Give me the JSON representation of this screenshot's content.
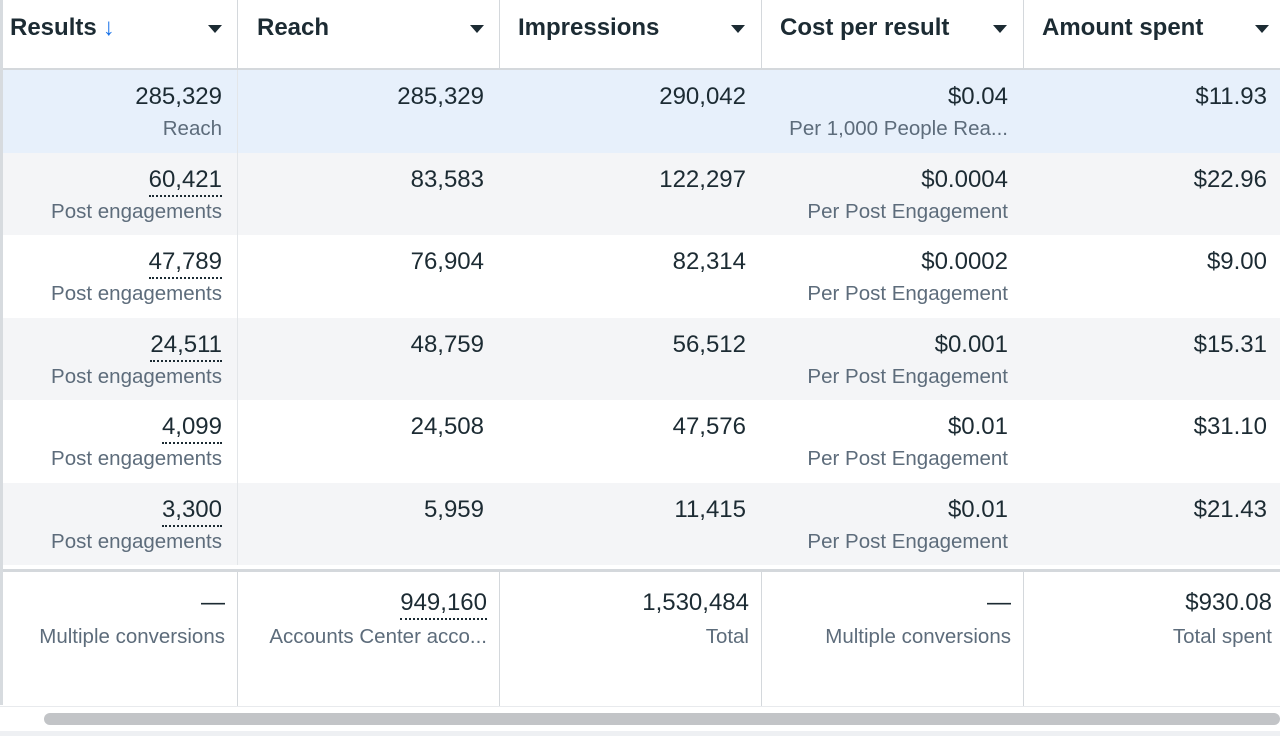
{
  "columns": [
    {
      "label": "Results",
      "sorted_desc": true
    },
    {
      "label": "Reach"
    },
    {
      "label": "Impressions"
    },
    {
      "label": "Cost per result"
    },
    {
      "label": "Amount spent"
    }
  ],
  "sort_arrow": "↓",
  "rows": [
    {
      "results": "285,329",
      "results_sub": "Reach",
      "reach": "285,329",
      "impressions": "290,042",
      "cost": "$0.04",
      "cost_sub": "Per 1,000 People Rea...",
      "spent": "$11.93",
      "highlighted": true
    },
    {
      "results": "60,421",
      "results_sub": "Post engagements",
      "reach": "83,583",
      "impressions": "122,297",
      "cost": "$0.0004",
      "cost_sub": "Per Post Engagement",
      "spent": "$22.96"
    },
    {
      "results": "47,789",
      "results_sub": "Post engagements",
      "reach": "76,904",
      "impressions": "82,314",
      "cost": "$0.0002",
      "cost_sub": "Per Post Engagement",
      "spent": "$9.00"
    },
    {
      "results": "24,511",
      "results_sub": "Post engagements",
      "reach": "48,759",
      "impressions": "56,512",
      "cost": "$0.001",
      "cost_sub": "Per Post Engagement",
      "spent": "$15.31"
    },
    {
      "results": "4,099",
      "results_sub": "Post engagements",
      "reach": "24,508",
      "impressions": "47,576",
      "cost": "$0.01",
      "cost_sub": "Per Post Engagement",
      "spent": "$31.10"
    },
    {
      "results": "3,300",
      "results_sub": "Post engagements",
      "reach": "5,959",
      "impressions": "11,415",
      "cost": "$0.01",
      "cost_sub": "Per Post Engagement",
      "spent": "$21.43"
    }
  ],
  "totals": {
    "results": "—",
    "results_sub": "Multiple conversions",
    "reach": "949,160",
    "reach_sub": "Accounts Center acco...",
    "impressions": "1,530,484",
    "impressions_sub": "Total",
    "cost": "—",
    "cost_sub": "Multiple conversions",
    "spent": "$930.08",
    "spent_sub": "Total spent"
  },
  "colors": {
    "highlight_row": "#e7f0fb",
    "striped_row": "#f4f5f7",
    "text_primary": "#1c2b33",
    "text_secondary": "#5d6c7b",
    "sort_arrow": "#1a73e8"
  }
}
